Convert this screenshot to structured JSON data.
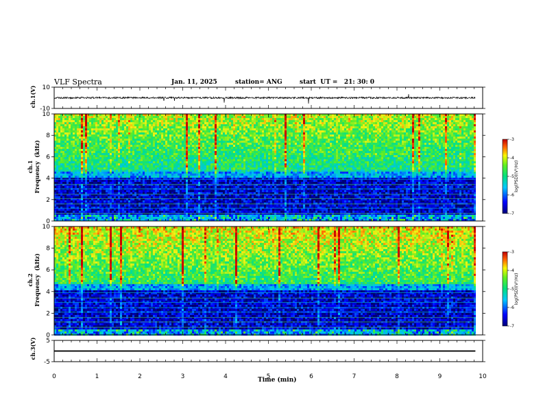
{
  "header": {
    "title": "VLF Spectra",
    "date": "Jan. 11, 2025",
    "station": "station= ANG",
    "start": "start  UT =   21: 30: 0"
  },
  "chart_data": [
    {
      "type": "line",
      "name": "waveform-ch1",
      "ylabel": "ch.1(V)",
      "ylim": [
        -10,
        10
      ],
      "yticks": [
        10,
        -10
      ],
      "xlim": [
        0,
        10
      ]
    },
    {
      "type": "heatmap",
      "name": "spectrogram-ch1",
      "ylabel": "ch.1\nFrequency  (kHz)",
      "ylim": [
        0,
        10
      ],
      "yticks": [
        0,
        2,
        4,
        6,
        8,
        10
      ],
      "xlim": [
        0,
        10
      ],
      "data_x_end": 9.83
    },
    {
      "type": "heatmap",
      "name": "spectrogram-ch2",
      "ylabel": "ch.2\nFrequency  (kHz)",
      "ylim": [
        0,
        10
      ],
      "yticks": [
        0,
        2,
        4,
        6,
        8,
        10
      ],
      "xlim": [
        0,
        10
      ],
      "data_x_end": 9.83
    },
    {
      "type": "line",
      "name": "waveform-ch3",
      "ylabel": "ch.3(V)",
      "ylim": [
        -5,
        5
      ],
      "yticks": [
        5,
        -5
      ],
      "xlim": [
        0,
        10
      ],
      "xticks": [
        0,
        1,
        2,
        3,
        4,
        5,
        6,
        7,
        8,
        9,
        10
      ],
      "xlabel": "Time  (min)"
    }
  ],
  "colorbar": {
    "label": "log(PSD)(V²/Hz)",
    "range": [
      -7,
      -3
    ],
    "ticks": [
      -3,
      -4,
      -5,
      -6,
      -7
    ]
  },
  "colors": {
    "map_low": "#00007a",
    "map_mid": "#00d8c0",
    "map_green": "#40e040",
    "map_yellow": "#f0f020",
    "map_high": "#d00000"
  }
}
